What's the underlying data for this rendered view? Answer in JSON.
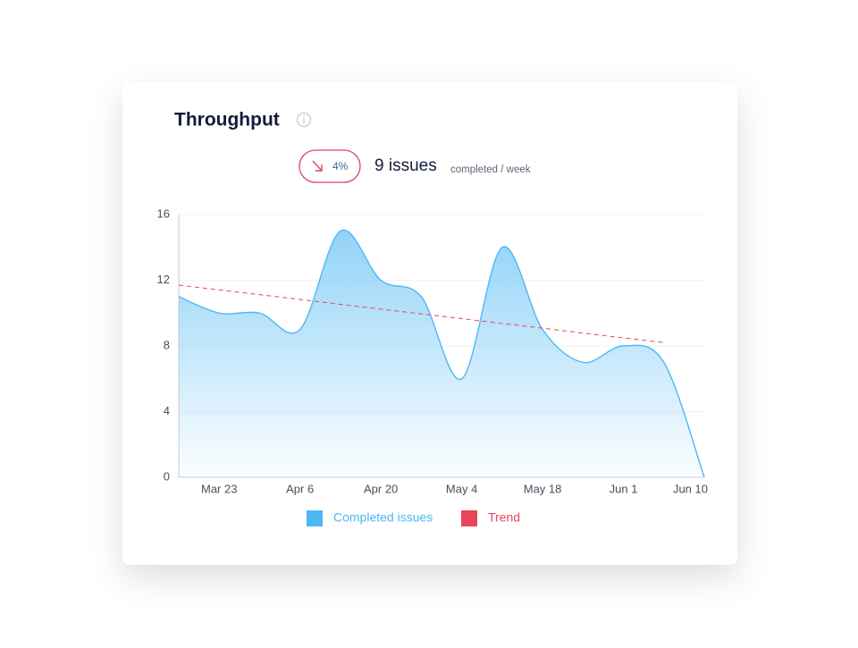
{
  "chart_data": {
    "type": "area",
    "title": "Throughput",
    "badge": "4%",
    "headline": "9 issues",
    "headline_unit": "completed / week",
    "categories": [
      null,
      "Mar 23",
      null,
      "Apr 6",
      null,
      "Apr 20",
      null,
      "May 4",
      null,
      "May 18",
      null,
      "Jun 1",
      null,
      "Jun 10"
    ],
    "series": [
      {
        "name": "Completed issues",
        "color": "#4db8f5",
        "values": [
          11,
          10,
          10,
          9,
          15,
          12,
          11,
          6,
          14,
          9,
          7,
          8,
          7,
          0
        ]
      },
      {
        "name": "Trend",
        "color": "#e8455a",
        "values": [
          11.7,
          11.41,
          11.12,
          10.83,
          10.53,
          10.24,
          9.95,
          9.66,
          9.37,
          9.08,
          8.78,
          8.49,
          8.2,
          null
        ]
      }
    ],
    "ylim": [
      0,
      16
    ],
    "yticks": [
      0,
      4,
      8,
      12,
      16
    ],
    "grid": true
  }
}
